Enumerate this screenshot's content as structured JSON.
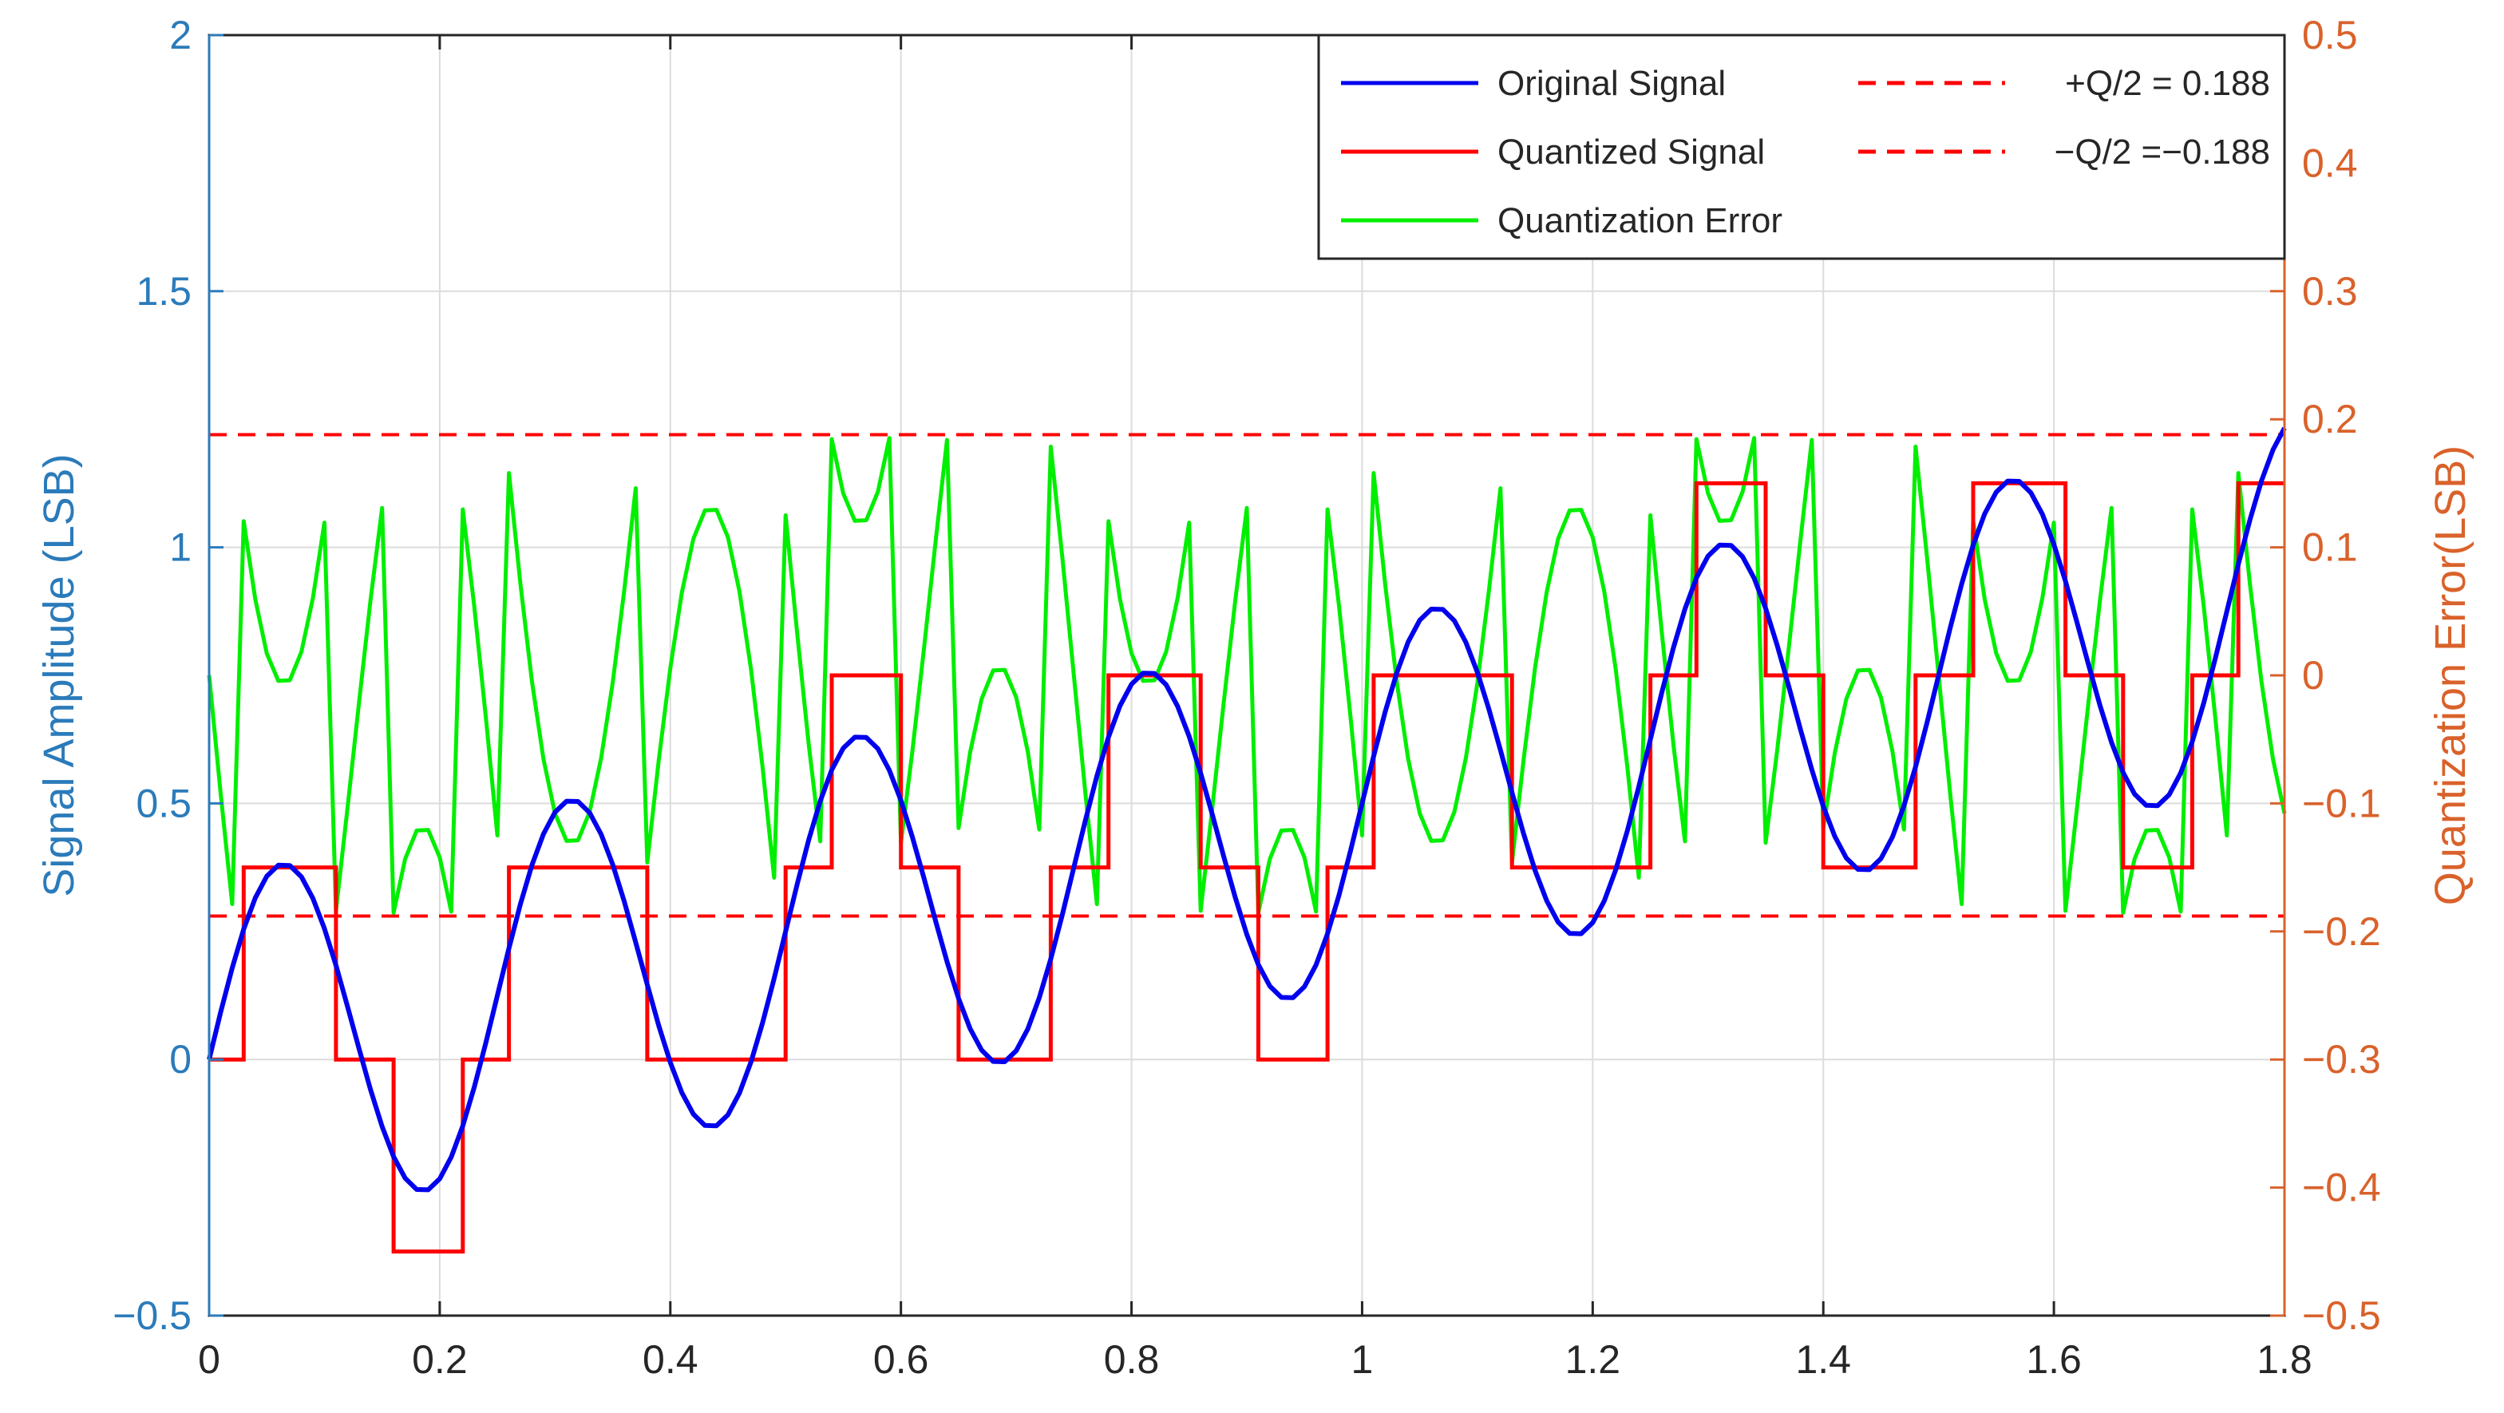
{
  "colors": {
    "original": "#0000ee",
    "quantized": "#ff0000",
    "error": "#00ee00",
    "threshold": "#ff0000",
    "left_axis": "#2b7bba",
    "right_axis": "#d9622b",
    "grid": "#dcdcdc"
  },
  "chart_data": {
    "type": "line",
    "title": "",
    "xlabel": "",
    "ylabel": "Signal Amplitude (LSB)",
    "ylabel_right": "Quantization Error(LSB)",
    "xlim": [
      0,
      1.8
    ],
    "ylim": [
      -0.5,
      2
    ],
    "ylim_right": [
      -0.5,
      0.5
    ],
    "x_ticks": [
      0,
      0.2,
      0.4,
      0.6,
      0.8,
      1,
      1.2,
      1.4,
      1.6,
      1.8
    ],
    "x_tick_labels": [
      "0",
      "0.2",
      "0.4",
      "0.6",
      "0.8",
      "1",
      "1.2",
      "1.4",
      "1.6",
      "1.8"
    ],
    "y_ticks": [
      -0.5,
      0,
      0.5,
      1,
      1.5,
      2
    ],
    "y_tick_labels": [
      "−0.5",
      "0",
      "0.5",
      "1",
      "1.5",
      "2"
    ],
    "y_right_ticks": [
      -0.5,
      -0.4,
      -0.3,
      -0.2,
      -0.1,
      0,
      0.1,
      0.2,
      0.3,
      0.4,
      0.5
    ],
    "y_right_tick_labels": [
      "−0.5",
      "−0.4",
      "−0.3",
      "−0.2",
      "−0.1",
      "0",
      "0.1",
      "0.2",
      "0.3",
      "0.4",
      "0.5"
    ],
    "grid": true,
    "legend_position": "top-right",
    "legend": [
      {
        "label": "Original Signal",
        "style": "solid",
        "color": "#0000ee"
      },
      {
        "label": "Quantized Signal",
        "style": "solid",
        "color": "#ff0000"
      },
      {
        "label": "Quantization Error",
        "style": "solid",
        "color": "#00ee00"
      },
      {
        "label": "+Q/2 = 0.188",
        "style": "dashed",
        "color": "#ff0000"
      },
      {
        "label": "−Q/2 =−0.188",
        "style": "dashed",
        "color": "#ff0000"
      }
    ],
    "signal_model": {
      "description": "",
      "offset_slope": 0.5,
      "amplitude": 0.35,
      "frequency": 4
    },
    "quantization_step": 0.375,
    "thresholds_right": [
      0.188,
      -0.188
    ],
    "x_step": 0.01
  }
}
